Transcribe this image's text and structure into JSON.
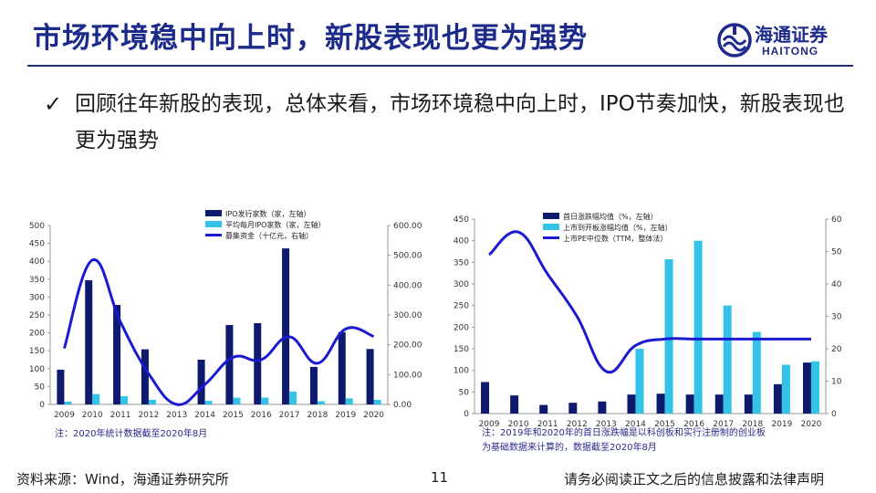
{
  "header": {
    "title": "市场环境稳中向上时，新股表现也更为强势",
    "logo_cn": "海通证券",
    "logo_en": "HAITONG",
    "logo_icon": "haitong-logo-icon",
    "accent_color": "#1c2a8a"
  },
  "bullet": {
    "check_icon": "checkmark-icon",
    "text": "回顾往年新股的表现，总体来看，市场环境稳中向上时，IPO节奏加快，新股表现也更为强势"
  },
  "chart_data": [
    {
      "type": "bar",
      "categories": [
        "2009",
        "2010",
        "2011",
        "2012",
        "2013",
        "2014",
        "2015",
        "2016",
        "2017",
        "2018",
        "2019",
        "2020"
      ],
      "series": [
        {
          "name": "IPO发行家数（家，左轴）",
          "type": "bar",
          "axis": "left",
          "color": "#0d1a6e",
          "values": [
            97,
            347,
            278,
            154,
            0,
            125,
            222,
            227,
            436,
            105,
            202,
            155
          ]
        },
        {
          "name": "平均每月IPO家数（家，左轴）",
          "type": "bar",
          "axis": "left",
          "color": "#33c2e8",
          "values": [
            8,
            29,
            23,
            13,
            0,
            10,
            19,
            19,
            36,
            9,
            17,
            13
          ]
        },
        {
          "name": "募集资金（十亿元，右轴）",
          "type": "line",
          "axis": "right",
          "color": "#1a1ad0",
          "values": [
            188,
            484,
            276,
            103,
            0,
            67,
            158,
            150,
            227,
            138,
            253,
            228
          ]
        }
      ],
      "left_axis": {
        "ylim": [
          0,
          500
        ],
        "ticks": [
          "0",
          "50",
          "100",
          "150",
          "200",
          "250",
          "300",
          "350",
          "400",
          "450",
          "500"
        ]
      },
      "right_axis": {
        "ylim": [
          0,
          600
        ],
        "ticks": [
          "0.00",
          "100.00",
          "200.00",
          "300.00",
          "400.00",
          "500.00",
          "600.00"
        ]
      },
      "legend": "top-center",
      "grid": false,
      "note": "注：2020年统计数据截至2020年8月"
    },
    {
      "type": "bar",
      "categories": [
        "2009",
        "2010",
        "2011",
        "2012",
        "2013",
        "2014",
        "2015",
        "2016",
        "2017",
        "2018",
        "2019",
        "2020"
      ],
      "series": [
        {
          "name": "首日涨跌幅均值（%，左轴）",
          "type": "bar",
          "axis": "left",
          "color": "#0d1a6e",
          "values": [
            73,
            42,
            20,
            25,
            28,
            44,
            46,
            44,
            44,
            44,
            68,
            118
          ]
        },
        {
          "name": "上市到开板涨幅均值（%，左轴）",
          "type": "bar",
          "axis": "left",
          "color": "#33c2e8",
          "values": [
            0,
            0,
            0,
            0,
            0,
            150,
            357,
            400,
            250,
            189,
            113,
            121
          ]
        },
        {
          "name": "上市PE中位数（TTM，整体法）",
          "type": "line",
          "axis": "right",
          "color": "#1a1ad0",
          "values": [
            49,
            56,
            43,
            30,
            13,
            21,
            23,
            23,
            23,
            23,
            23,
            23
          ]
        }
      ],
      "left_axis": {
        "ylim": [
          0,
          450
        ],
        "ticks": [
          "0",
          "50",
          "100",
          "150",
          "200",
          "250",
          "300",
          "350",
          "400",
          "450"
        ]
      },
      "right_axis": {
        "ylim": [
          0,
          60
        ],
        "ticks": [
          "0",
          "10",
          "20",
          "30",
          "40",
          "50",
          "60"
        ]
      },
      "legend": "top-left",
      "grid": false,
      "note_line1": "注：2019年和2020年的首日涨跌幅是以科创板和实行注册制的创业板",
      "note_line2": "为基础数据来计算的，数据截至2020年8月"
    }
  ],
  "footer": {
    "source": "资料来源：Wind，海通证券研究所",
    "page_number": "11",
    "disclaimer": "请务必阅读正文之后的信息披露和法律声明"
  }
}
